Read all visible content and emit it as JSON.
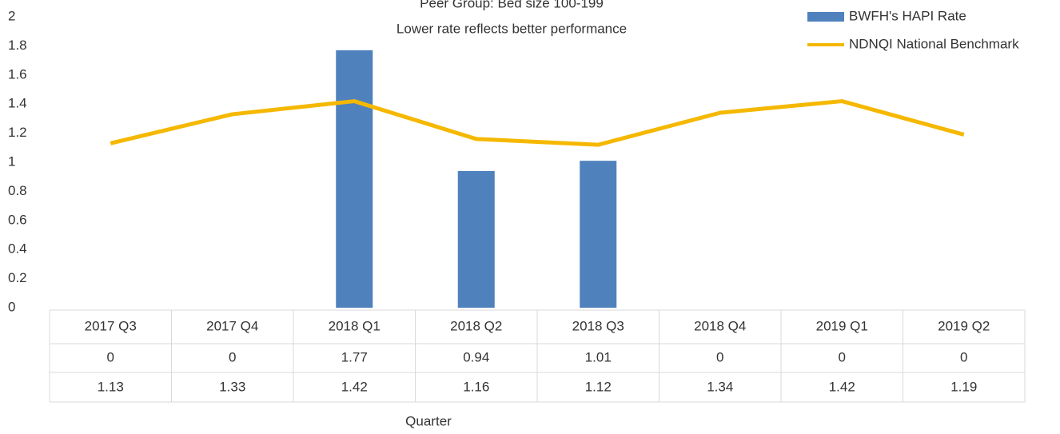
{
  "chart_data": {
    "type": "bar_line",
    "title": "Peer Group: Bed size 100-199",
    "subtitle": "Lower rate reflects better performance",
    "x_label": "Quarter",
    "categories": [
      "2017 Q3",
      "2017 Q4",
      "2018 Q1",
      "2018 Q2",
      "2018 Q3",
      "2018 Q4",
      "2019 Q1",
      "2019 Q2"
    ],
    "series": [
      {
        "name": "BWFH's HAPI Rate",
        "type": "bar",
        "color": "#4f81bd",
        "values": [
          0,
          0,
          1.77,
          0.94,
          1.01,
          0,
          0,
          0
        ]
      },
      {
        "name": "NDNQI National Benchmark",
        "type": "line",
        "color": "#f5b800",
        "values": [
          1.13,
          1.33,
          1.42,
          1.16,
          1.12,
          1.34,
          1.42,
          1.19
        ]
      }
    ],
    "ylim": [
      0,
      2
    ],
    "yticks": [
      0,
      0.2,
      0.4,
      0.6,
      0.8,
      1,
      1.2,
      1.4,
      1.6,
      1.8,
      2
    ],
    "grid": false,
    "legend": "top-right"
  }
}
